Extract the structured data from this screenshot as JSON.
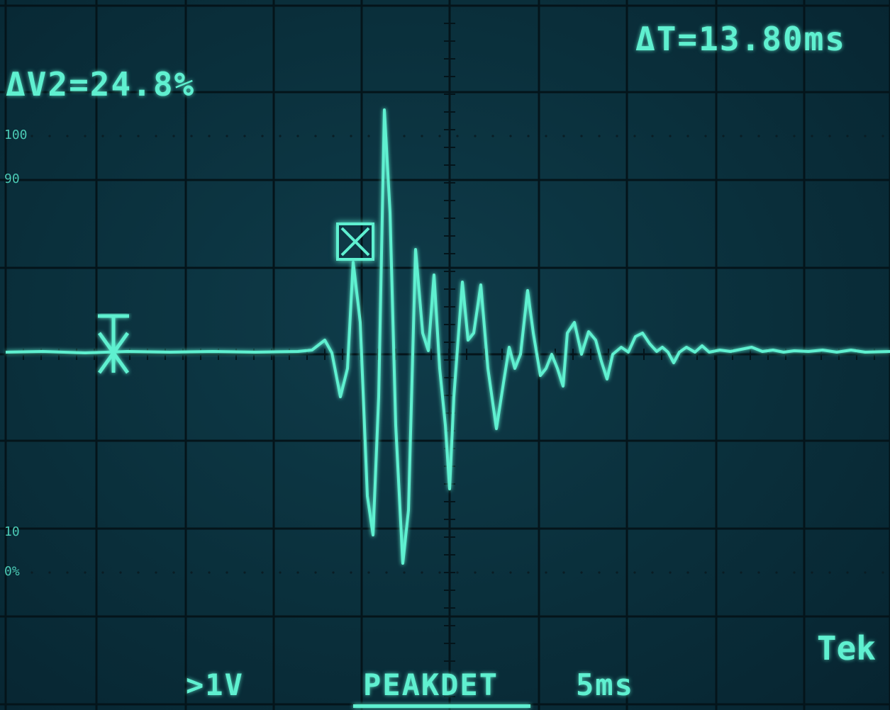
{
  "readouts": {
    "delta_t": "ΔT=13.80ms",
    "delta_v": "ΔV2=24.8%",
    "brand": "Tek",
    "channel_scale": ">1V",
    "acquisition_mode": "PEAKDET",
    "time_per_div": "5ms"
  },
  "percent_scale": {
    "p100": "100",
    "p90": "90",
    "p10": "10",
    "p0": "0%"
  },
  "colors": {
    "screen_bg": "#0a2f3b",
    "trace": "#5ff0d0",
    "grid": "#04141a"
  },
  "icons": {
    "trigger_marker": "trigger-position-icon",
    "cursor_marker": "cursor-box-icon"
  }
}
